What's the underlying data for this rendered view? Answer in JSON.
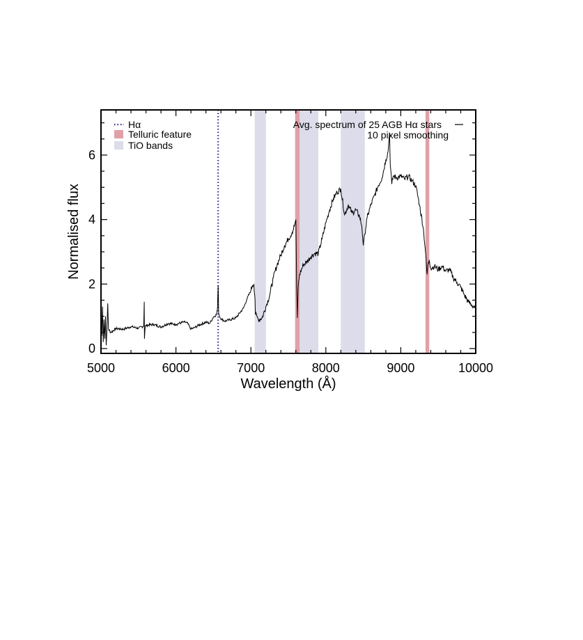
{
  "chart_data": {
    "type": "line",
    "xlabel": "Wavelength (Å)",
    "ylabel": "Normalised flux",
    "xlim": [
      5000,
      10000
    ],
    "ylim": [
      -0.15,
      7.4
    ],
    "xticks": [
      "5000",
      "6000",
      "7000",
      "8000",
      "9000",
      "10000"
    ],
    "yticks": [
      "0",
      "2",
      "4",
      "6"
    ],
    "grid": false,
    "legend_left": {
      "position": "top-left",
      "entries": [
        {
          "label": "Hα",
          "style": "dotted-line",
          "color": "#2b2b8c"
        },
        {
          "label": "Telluric feature",
          "style": "patch",
          "color": "#e0a0a8"
        },
        {
          "label": "TiO bands",
          "style": "patch",
          "color": "#dcdcea"
        }
      ]
    },
    "legend_right": {
      "position": "top-right",
      "line1": "Avg. spectrum of 25 AGB Hα stars",
      "line2": "10 pixel smoothing",
      "color": "#000000"
    },
    "halpha_line": {
      "x": 6563,
      "color": "#2b2b8c"
    },
    "telluric_bands": [
      [
        7590,
        7650
      ],
      [
        9330,
        9380
      ]
    ],
    "tio_bands": [
      [
        7050,
        7200
      ],
      [
        7650,
        7900
      ],
      [
        8200,
        8520
      ]
    ],
    "spectrum": {
      "name": "Avg. spectrum of 25 AGB Hα stars",
      "color": "#000000",
      "x": [
        5000,
        5010,
        5020,
        5030,
        5040,
        5050,
        5060,
        5070,
        5080,
        5090,
        5100,
        5130,
        5200,
        5300,
        5400,
        5500,
        5570,
        5577,
        5580,
        5590,
        5600,
        5700,
        5800,
        5900,
        6000,
        6100,
        6150,
        6200,
        6250,
        6300,
        6400,
        6450,
        6500,
        6540,
        6555,
        6563,
        6570,
        6590,
        6650,
        6700,
        6800,
        6900,
        6950,
        7000,
        7020,
        7040,
        7055,
        7060,
        7080,
        7100,
        7150,
        7200,
        7250,
        7300,
        7350,
        7400,
        7450,
        7500,
        7550,
        7580,
        7600,
        7610,
        7620,
        7630,
        7650,
        7700,
        7750,
        7800,
        7850,
        7900,
        7950,
        8000,
        8050,
        8100,
        8150,
        8200,
        8250,
        8300,
        8350,
        8400,
        8450,
        8480,
        8500,
        8520,
        8550,
        8600,
        8650,
        8700,
        8750,
        8800,
        8830,
        8850,
        8860,
        8880,
        8900,
        8950,
        9000,
        9050,
        9100,
        9150,
        9200,
        9250,
        9300,
        9330,
        9350,
        9360,
        9380,
        9400,
        9450,
        9500,
        9550,
        9600,
        9650,
        9700,
        9750,
        9800,
        9850,
        9900,
        9950,
        10000
      ],
      "y": [
        1.5,
        0.4,
        1.3,
        0.2,
        0.9,
        0.3,
        1.0,
        0.1,
        0.6,
        1.4,
        0.6,
        0.5,
        0.62,
        0.6,
        0.68,
        0.63,
        0.7,
        1.45,
        0.3,
        0.68,
        0.72,
        0.75,
        0.67,
        0.78,
        0.75,
        0.82,
        0.8,
        0.6,
        0.65,
        0.72,
        0.82,
        0.78,
        0.98,
        1.05,
        1.25,
        1.95,
        1.1,
        0.95,
        0.85,
        0.88,
        0.95,
        1.25,
        1.55,
        1.8,
        1.95,
        2.0,
        1.55,
        1.05,
        1.0,
        0.9,
        0.95,
        1.3,
        1.65,
        2.2,
        2.6,
        2.9,
        3.2,
        3.4,
        3.6,
        3.8,
        4.0,
        2.0,
        0.95,
        1.9,
        2.3,
        2.6,
        2.7,
        2.85,
        2.95,
        2.95,
        3.4,
        3.9,
        4.3,
        4.65,
        4.85,
        4.95,
        4.15,
        4.45,
        4.2,
        4.3,
        4.1,
        3.8,
        3.2,
        3.55,
        4.05,
        4.45,
        4.75,
        5.05,
        5.3,
        5.85,
        6.1,
        6.7,
        5.7,
        5.1,
        5.35,
        5.3,
        5.35,
        5.25,
        5.35,
        5.2,
        5.05,
        4.45,
        3.75,
        3.0,
        2.3,
        2.55,
        2.75,
        2.5,
        2.55,
        2.45,
        2.55,
        2.4,
        2.45,
        2.2,
        2.05,
        1.9,
        1.65,
        1.45,
        1.35,
        1.2
      ]
    }
  }
}
